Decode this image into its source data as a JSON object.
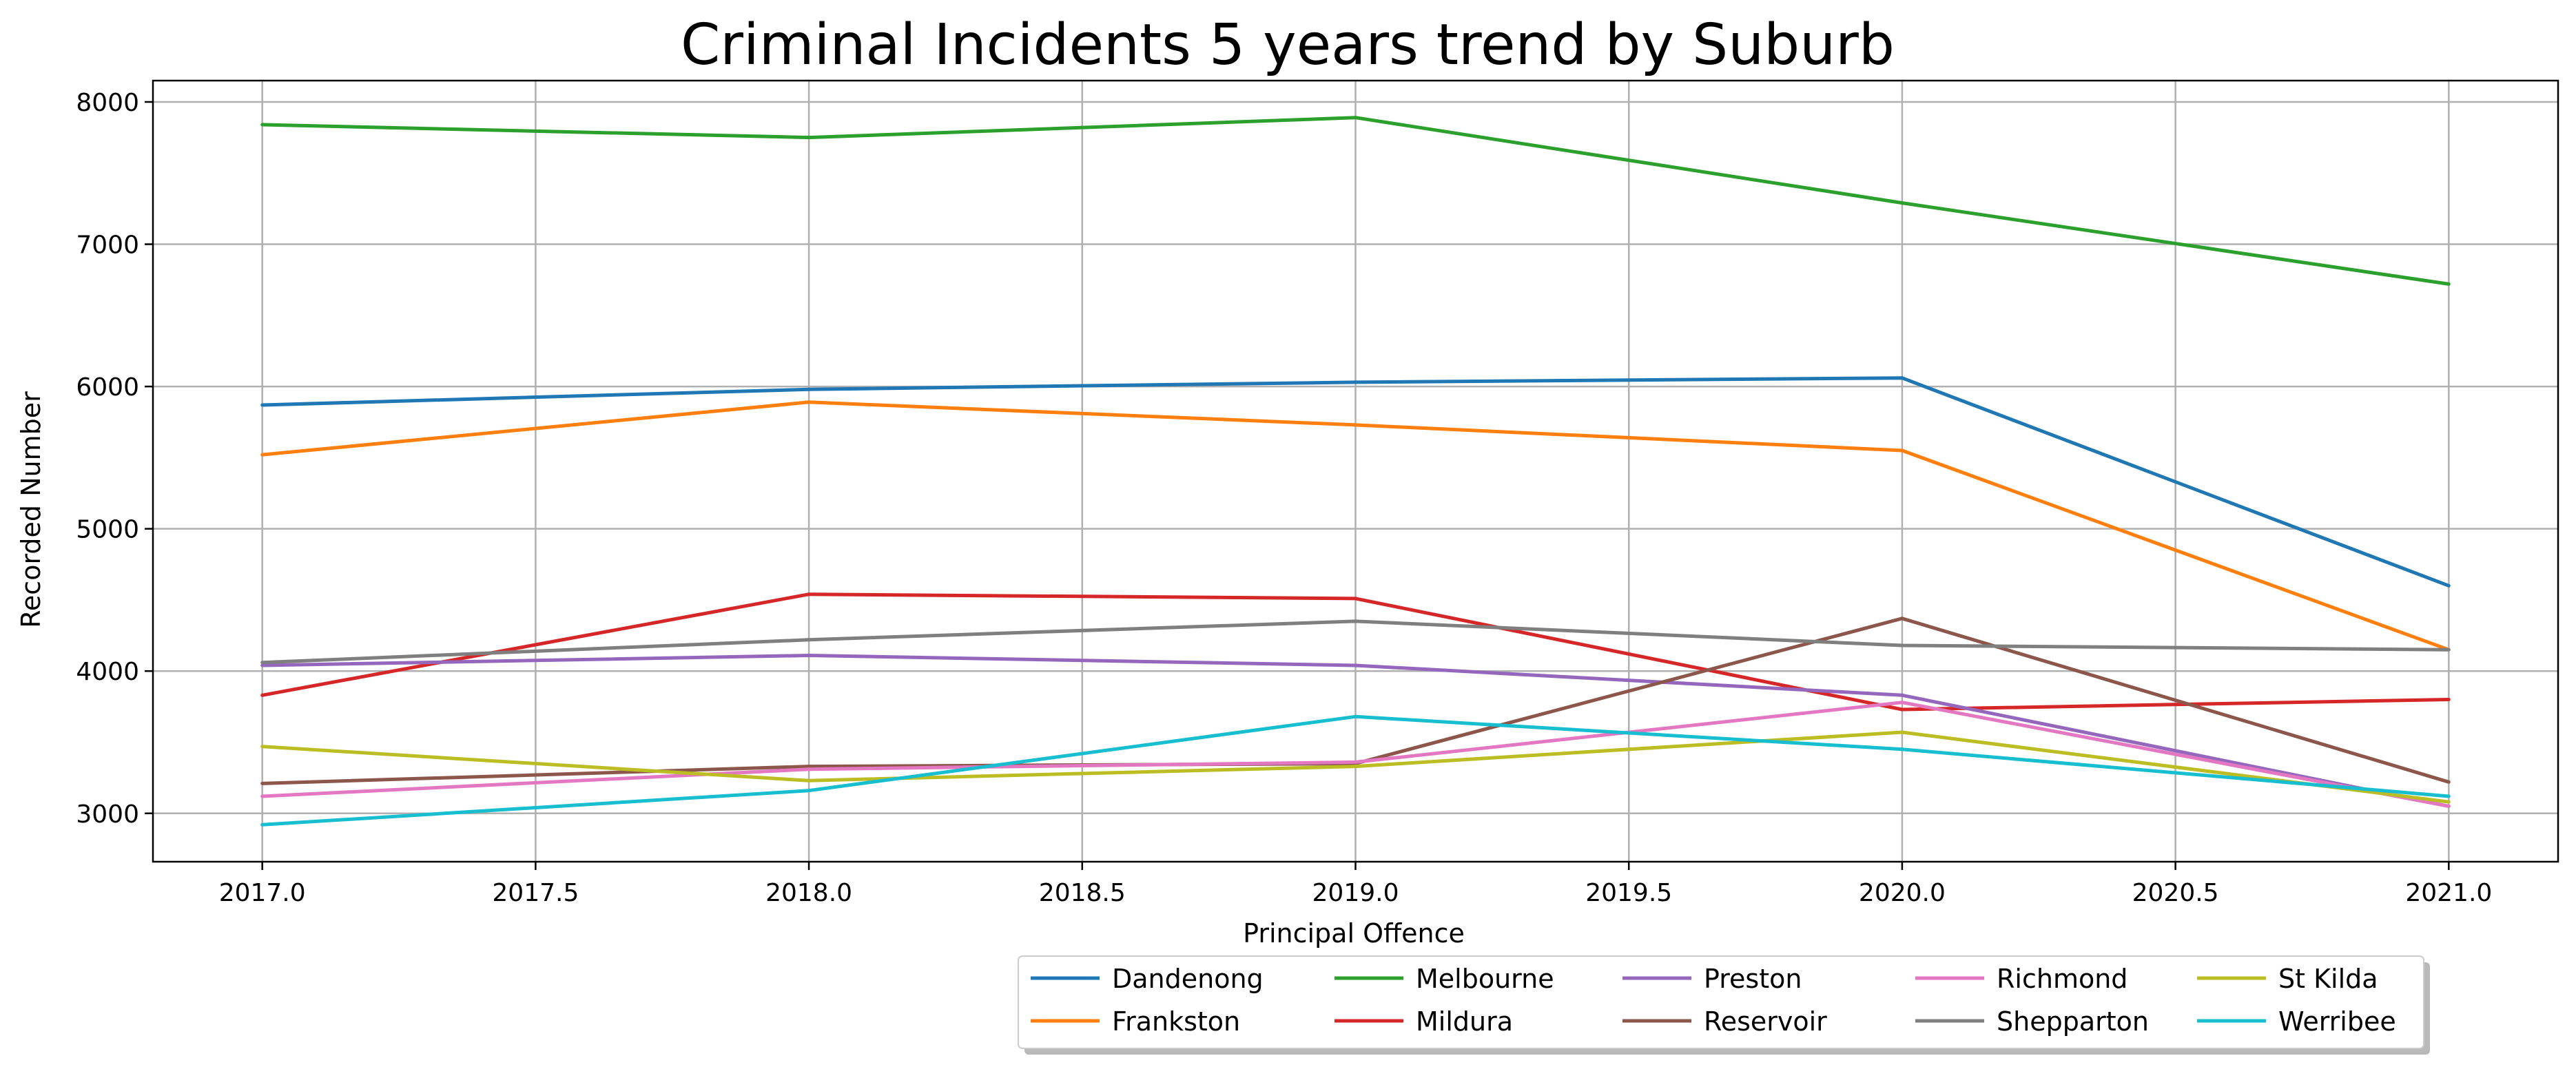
{
  "chart_data": {
    "type": "line",
    "title": "Criminal Incidents 5 years trend by Suburb",
    "xlabel": "Principal Offence",
    "ylabel": "Recorded Number",
    "x": [
      2017,
      2018,
      2019,
      2020,
      2021
    ],
    "xticks": [
      "2017.0",
      "2017.5",
      "2018.0",
      "2018.5",
      "2019.0",
      "2019.5",
      "2020.0",
      "2020.5",
      "2021.0"
    ],
    "yticks": [
      "3000",
      "4000",
      "5000",
      "6000",
      "7000",
      "8000"
    ],
    "xlim": [
      2016.8,
      2021.2
    ],
    "ylim": [
      2660,
      8150
    ],
    "grid": true,
    "legend_position": "bottom-center",
    "series": [
      {
        "name": "Dandenong",
        "color": "#1f77b4",
        "values": [
          5870,
          5980,
          6030,
          6060,
          4600
        ]
      },
      {
        "name": "Frankston",
        "color": "#ff7f0e",
        "values": [
          5520,
          5890,
          5730,
          5550,
          4150
        ]
      },
      {
        "name": "Melbourne",
        "color": "#2ca02c",
        "values": [
          7840,
          7750,
          7890,
          7290,
          6720
        ]
      },
      {
        "name": "Mildura",
        "color": "#d62728",
        "values": [
          3830,
          4540,
          4510,
          3730,
          3800
        ]
      },
      {
        "name": "Preston",
        "color": "#9467bd",
        "values": [
          4040,
          4110,
          4040,
          3830,
          3050
        ]
      },
      {
        "name": "Reservoir",
        "color": "#8c564b",
        "values": [
          3210,
          3330,
          3350,
          4370,
          3220
        ]
      },
      {
        "name": "Richmond",
        "color": "#e377c2",
        "values": [
          3120,
          3310,
          3360,
          3780,
          3050
        ]
      },
      {
        "name": "Shepparton",
        "color": "#7f7f7f",
        "values": [
          4060,
          4220,
          4350,
          4180,
          4150
        ]
      },
      {
        "name": "St Kilda",
        "color": "#bcbd22",
        "values": [
          3470,
          3230,
          3330,
          3570,
          3080
        ]
      },
      {
        "name": "Werribee",
        "color": "#17becf",
        "values": [
          2920,
          3160,
          3680,
          3450,
          3120
        ]
      }
    ]
  }
}
